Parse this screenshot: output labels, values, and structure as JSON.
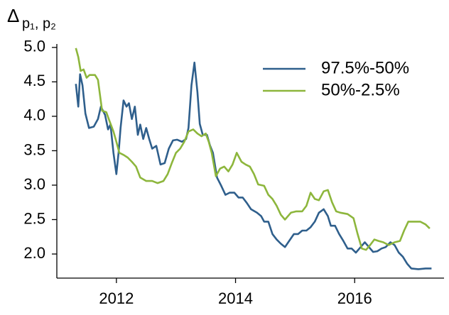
{
  "chart_data": {
    "type": "line",
    "ylabel": "Δ",
    "ylabel_subscript": "p₁, p₂",
    "xlim": [
      2011.0,
      2017.5
    ],
    "xticks": [
      2012,
      2014,
      2016
    ],
    "ylim": [
      1.65,
      5.05
    ],
    "yticks": [
      {
        "value": 2,
        "label": "2.0"
      },
      2.5,
      {
        "value": 3,
        "label": "3.0"
      },
      3.5,
      {
        "value": 4,
        "label": "4.0"
      },
      4.5,
      {
        "value": 5,
        "label": "5.0"
      }
    ],
    "legend": "upper right",
    "series": [
      {
        "name": "97.5%-50%",
        "color": "#2f5f8c",
        "x": [
          2011.32,
          2011.36,
          2011.39,
          2011.43,
          2011.48,
          2011.54,
          2011.62,
          2011.69,
          2011.74,
          2011.81,
          2011.86,
          2011.9,
          2011.95,
          2012,
          2012.04,
          2012.07,
          2012.12,
          2012.17,
          2012.21,
          2012.26,
          2012.31,
          2012.36,
          2012.4,
          2012.45,
          2012.5,
          2012.55,
          2012.6,
          2012.67,
          2012.74,
          2012.81,
          2012.88,
          2012.95,
          2013.02,
          2013.1,
          2013.17,
          2013.21,
          2013.26,
          2013.31,
          2013.36,
          2013.4,
          2013.45,
          2013.52,
          2013.57,
          2013.62,
          2013.69,
          2013.76,
          2013.83,
          2013.9,
          2013.98,
          2014.05,
          2014.12,
          2014.19,
          2014.26,
          2014.36,
          2014.43,
          2014.48,
          2014.55,
          2014.62,
          2014.69,
          2014.76,
          2014.83,
          2014.9,
          2014.98,
          2015.05,
          2015.12,
          2015.19,
          2015.26,
          2015.33,
          2015.4,
          2015.48,
          2015.55,
          2015.6,
          2015.67,
          2015.74,
          2015.81,
          2015.88,
          2015.95,
          2016.02,
          2016.1,
          2016.17,
          2016.24,
          2016.31,
          2016.38,
          2016.45,
          2016.52,
          2016.6,
          2016.67,
          2016.74,
          2016.81,
          2016.88,
          2016.95,
          2017.07,
          2017.19,
          2017.29
        ],
        "values": [
          4.47,
          4.14,
          4.61,
          4.45,
          4.04,
          3.83,
          3.85,
          3.96,
          4.14,
          4.02,
          3.81,
          3.88,
          3.47,
          3.16,
          3.5,
          3.83,
          4.23,
          4.14,
          4.19,
          3.96,
          4.14,
          3.73,
          3.88,
          3.67,
          3.83,
          3.67,
          3.53,
          3.57,
          3.3,
          3.32,
          3.53,
          3.65,
          3.66,
          3.63,
          3.67,
          3.83,
          4.45,
          4.78,
          4.35,
          3.89,
          3.73,
          3.73,
          3.58,
          3.47,
          3.11,
          2.99,
          2.86,
          2.89,
          2.89,
          2.82,
          2.82,
          2.74,
          2.65,
          2.6,
          2.55,
          2.47,
          2.47,
          2.29,
          2.21,
          2.15,
          2.1,
          2.19,
          2.29,
          2.29,
          2.34,
          2.34,
          2.39,
          2.47,
          2.6,
          2.65,
          2.55,
          2.41,
          2.41,
          2.29,
          2.19,
          2.08,
          2.08,
          2.02,
          2.1,
          2.17,
          2.1,
          2.03,
          2.04,
          2.08,
          2.1,
          2.17,
          2.13,
          2.02,
          1.96,
          1.86,
          1.79,
          1.78,
          1.79,
          1.79
        ]
      },
      {
        "name": "50%-2.5%",
        "color": "#8db63c",
        "x": [
          2011.32,
          2011.36,
          2011.4,
          2011.45,
          2011.5,
          2011.55,
          2011.6,
          2011.64,
          2011.69,
          2011.76,
          2011.83,
          2011.88,
          2011.95,
          2012,
          2012.05,
          2012.12,
          2012.19,
          2012.26,
          2012.33,
          2012.4,
          2012.5,
          2012.6,
          2012.69,
          2012.79,
          2012.86,
          2012.93,
          2013,
          2013.07,
          2013.14,
          2013.21,
          2013.29,
          2013.36,
          2013.43,
          2013.5,
          2013.55,
          2013.6,
          2013.67,
          2013.74,
          2013.81,
          2013.88,
          2013.95,
          2014.02,
          2014.1,
          2014.17,
          2014.24,
          2014.31,
          2014.38,
          2014.48,
          2014.55,
          2014.62,
          2014.69,
          2014.76,
          2014.83,
          2014.93,
          2015.02,
          2015.12,
          2015.19,
          2015.26,
          2015.33,
          2015.4,
          2015.48,
          2015.55,
          2015.62,
          2015.69,
          2015.76,
          2015.88,
          2015.98,
          2016.05,
          2016.12,
          2016.19,
          2016.26,
          2016.33,
          2016.4,
          2016.48,
          2016.57,
          2016.67,
          2016.76,
          2016.83,
          2016.9,
          2017,
          2017.1,
          2017.19,
          2017.26
        ],
        "values": [
          4.99,
          4.86,
          4.66,
          4.68,
          4.56,
          4.6,
          4.6,
          4.6,
          4.53,
          4.08,
          4.06,
          3.94,
          3.78,
          3.63,
          3.47,
          3.44,
          3.4,
          3.34,
          3.27,
          3.11,
          3.06,
          3.06,
          3.03,
          3.06,
          3.16,
          3.32,
          3.47,
          3.53,
          3.63,
          3.78,
          3.81,
          3.75,
          3.71,
          3.75,
          3.63,
          3.47,
          3.13,
          3.24,
          3.27,
          3.2,
          3.3,
          3.47,
          3.34,
          3.3,
          3.27,
          3.16,
          3.01,
          2.99,
          2.86,
          2.8,
          2.7,
          2.57,
          2.5,
          2.6,
          2.62,
          2.62,
          2.7,
          2.89,
          2.8,
          2.78,
          2.91,
          2.93,
          2.75,
          2.62,
          2.6,
          2.58,
          2.52,
          2.29,
          2.08,
          2.06,
          2.13,
          2.21,
          2.19,
          2.17,
          2.13,
          2.17,
          2.19,
          2.34,
          2.47,
          2.47,
          2.47,
          2.43,
          2.37
        ]
      }
    ]
  }
}
